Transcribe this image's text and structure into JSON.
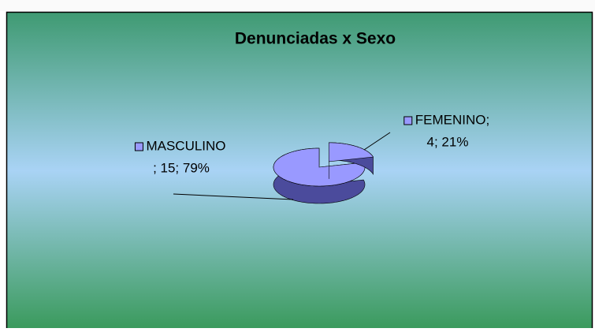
{
  "chart_data": {
    "type": "pie",
    "title": "Denunciadas x Sexo",
    "categories": [
      "FEMENINO;",
      "MASCULINO"
    ],
    "values": [
      4,
      15
    ],
    "value_labels": [
      "4; 21%",
      "; 15; 79%"
    ],
    "color": "#9999ff",
    "explode": [
      true,
      false
    ]
  }
}
